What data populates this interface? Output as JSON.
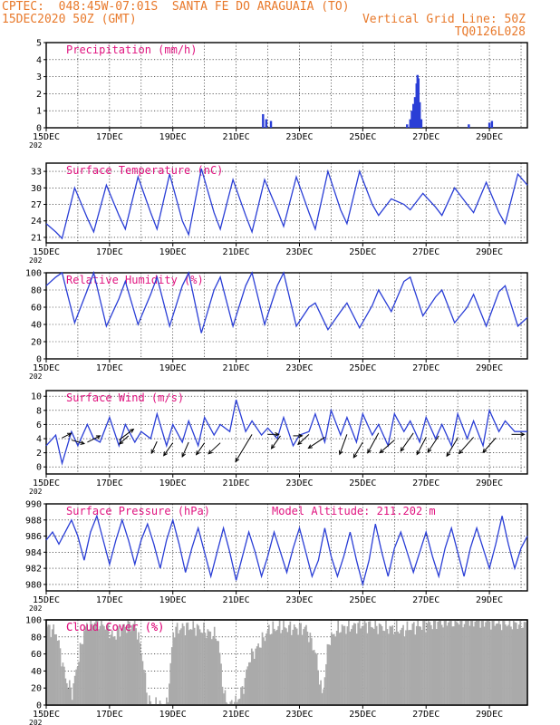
{
  "header": {
    "source": "CPTEC:",
    "coords": "048:45W-07:01S",
    "location": "SANTA FE DO ARAGUAIA (TO)",
    "date": "15DEC2020 50Z (GMT)",
    "grid_note": "Vertical Grid Line: 50Z",
    "model_code": "TQ0126L028"
  },
  "x_axis": {
    "ticks": [
      "15DEC",
      "17DEC",
      "19DEC",
      "21DEC",
      "23DEC",
      "25DEC",
      "27DEC",
      "29DEC"
    ],
    "year_stub": "202"
  },
  "chart_data": [
    {
      "type": "bar",
      "title": "Precipitation (mm/h)",
      "ylim": [
        0,
        5
      ],
      "yticks": [
        "0",
        "1",
        "2",
        "3",
        "4",
        "5"
      ],
      "x_unit": "days since 15DEC",
      "points": [
        [
          6.85,
          0.8
        ],
        [
          6.95,
          0.5
        ],
        [
          7.1,
          0.4
        ],
        [
          11.4,
          0.2
        ],
        [
          11.5,
          0.5
        ],
        [
          11.55,
          1.0
        ],
        [
          11.6,
          1.4
        ],
        [
          11.65,
          1.8
        ],
        [
          11.7,
          2.6
        ],
        [
          11.73,
          3.1
        ],
        [
          11.76,
          2.9
        ],
        [
          11.8,
          1.5
        ],
        [
          11.85,
          0.5
        ],
        [
          13.35,
          0.2
        ],
        [
          14.0,
          0.3
        ],
        [
          14.08,
          0.4
        ]
      ]
    },
    {
      "type": "line",
      "title": "Surface Temperature (nC)",
      "ylim": [
        20,
        34.5
      ],
      "yticks": [
        "21",
        "24",
        "27",
        "30",
        "33"
      ],
      "x": [
        0.0,
        0.3,
        0.5,
        0.9,
        1.3,
        1.5,
        1.9,
        2.3,
        2.5,
        2.9,
        3.3,
        3.5,
        3.9,
        4.3,
        4.5,
        4.9,
        5.3,
        5.5,
        5.9,
        6.3,
        6.5,
        6.9,
        7.3,
        7.5,
        7.9,
        8.3,
        8.5,
        8.9,
        9.3,
        9.5,
        9.9,
        10.3,
        10.5,
        10.9,
        11.3,
        11.5,
        11.9,
        12.3,
        12.5,
        12.9,
        13.3,
        13.5,
        13.9,
        14.3,
        14.5,
        14.9,
        15.2
      ],
      "values": [
        23.5,
        22.0,
        20.8,
        30.0,
        24.5,
        22.0,
        30.5,
        25.0,
        22.5,
        32.0,
        25.5,
        22.5,
        32.5,
        24.0,
        21.5,
        33.5,
        25.5,
        22.5,
        31.5,
        25.0,
        22.0,
        31.5,
        26.0,
        23.0,
        32.0,
        25.5,
        22.5,
        33.0,
        26.0,
        23.5,
        33.0,
        27.0,
        25.0,
        28.0,
        27.0,
        26.0,
        29.0,
        26.5,
        25.0,
        30.0,
        27.0,
        25.5,
        31.0,
        25.5,
        23.5,
        32.5,
        30.5
      ]
    },
    {
      "type": "line",
      "title": "Relative Humidity (%)",
      "ylim": [
        0,
        100
      ],
      "yticks": [
        "0",
        "20",
        "40",
        "60",
        "80",
        "100"
      ],
      "x": [
        0.0,
        0.3,
        0.5,
        0.9,
        1.3,
        1.5,
        1.9,
        2.3,
        2.5,
        2.9,
        3.3,
        3.5,
        3.9,
        4.3,
        4.5,
        4.9,
        5.3,
        5.5,
        5.9,
        6.3,
        6.5,
        6.9,
        7.3,
        7.5,
        7.9,
        8.3,
        8.5,
        8.9,
        9.3,
        9.5,
        9.9,
        10.3,
        10.5,
        10.9,
        11.3,
        11.5,
        11.9,
        12.3,
        12.5,
        12.9,
        13.3,
        13.5,
        13.9,
        14.3,
        14.5,
        14.9,
        15.2
      ],
      "values": [
        85.0,
        95.0,
        100.0,
        42.0,
        80.0,
        100.0,
        38.0,
        70.0,
        90.0,
        40.0,
        75.0,
        95.0,
        38.0,
        85.0,
        100.0,
        30.0,
        80.0,
        95.0,
        38.0,
        85.0,
        100.0,
        40.0,
        85.0,
        100.0,
        38.0,
        60.0,
        65.0,
        34.0,
        55.0,
        65.0,
        36.0,
        62.0,
        80.0,
        55.0,
        90.0,
        95.0,
        50.0,
        72.0,
        80.0,
        42.0,
        60.0,
        75.0,
        38.0,
        78.0,
        85.0,
        38.0,
        48.0
      ]
    },
    {
      "type": "line",
      "title": "Surface Wind (m/s)",
      "ylim": [
        -1,
        10.8
      ],
      "yticks": [
        "0",
        "2",
        "4",
        "6",
        "8",
        "10"
      ],
      "x": [
        0.0,
        0.3,
        0.5,
        0.6,
        0.8,
        1.0,
        1.3,
        1.5,
        1.7,
        2.0,
        2.3,
        2.5,
        2.8,
        3.0,
        3.3,
        3.5,
        3.8,
        4.0,
        4.3,
        4.5,
        4.8,
        5.0,
        5.3,
        5.5,
        5.8,
        6.0,
        6.3,
        6.5,
        6.8,
        7.0,
        7.3,
        7.5,
        7.8,
        8.0,
        8.3,
        8.5,
        8.8,
        9.0,
        9.3,
        9.5,
        9.8,
        10.0,
        10.3,
        10.5,
        10.8,
        11.0,
        11.3,
        11.5,
        11.8,
        12.0,
        12.3,
        12.5,
        12.8,
        13.0,
        13.3,
        13.5,
        13.8,
        14.0,
        14.3,
        14.5,
        14.8,
        15.2
      ],
      "values": [
        3.0,
        4.5,
        0.5,
        2.0,
        5.0,
        3.0,
        6.0,
        4.0,
        3.5,
        7.0,
        3.0,
        6.0,
        3.5,
        5.0,
        4.0,
        7.5,
        3.0,
        6.0,
        3.5,
        6.5,
        3.0,
        7.0,
        4.5,
        6.0,
        5.0,
        9.5,
        5.0,
        6.5,
        4.5,
        5.5,
        4.0,
        7.0,
        3.0,
        4.5,
        5.0,
        7.5,
        3.5,
        8.0,
        4.5,
        7.0,
        3.5,
        7.5,
        4.5,
        6.0,
        3.0,
        7.5,
        5.0,
        6.5,
        3.5,
        7.0,
        4.0,
        6.0,
        3.0,
        7.5,
        4.0,
        6.5,
        3.0,
        8.0,
        5.0,
        6.5,
        5.0,
        5.0
      ],
      "arrows": [
        {
          "x": 0.5,
          "v": 4.1,
          "dx": 10,
          "dy": -5
        },
        {
          "x": 0.8,
          "v": 3.8,
          "dx": 14,
          "dy": 4
        },
        {
          "x": 1.3,
          "v": 3.5,
          "dx": 14,
          "dy": -7
        },
        {
          "x": 2.3,
          "v": 3.8,
          "dx": 16,
          "dy": -12
        },
        {
          "x": 2.6,
          "v": 4.4,
          "dx": -10,
          "dy": 9
        },
        {
          "x": 3.5,
          "v": 3.6,
          "dx": -6,
          "dy": 13
        },
        {
          "x": 4.0,
          "v": 3.4,
          "dx": -10,
          "dy": 14
        },
        {
          "x": 4.5,
          "v": 3.5,
          "dx": -7,
          "dy": 16
        },
        {
          "x": 5.0,
          "v": 3.4,
          "dx": -9,
          "dy": 13
        },
        {
          "x": 5.5,
          "v": 3.4,
          "dx": -13,
          "dy": 12
        },
        {
          "x": 6.5,
          "v": 4.6,
          "dx": -18,
          "dy": 30
        },
        {
          "x": 7.0,
          "v": 4.6,
          "dx": 12,
          "dy": 0
        },
        {
          "x": 7.4,
          "v": 4.4,
          "dx": -10,
          "dy": 14
        },
        {
          "x": 7.8,
          "v": 4.4,
          "dx": 10,
          "dy": 0
        },
        {
          "x": 8.3,
          "v": 4.6,
          "dx": -12,
          "dy": 11
        },
        {
          "x": 8.8,
          "v": 4.2,
          "dx": -18,
          "dy": 12
        },
        {
          "x": 9.5,
          "v": 4.6,
          "dx": -8,
          "dy": 22
        },
        {
          "x": 10.0,
          "v": 3.5,
          "dx": -10,
          "dy": 17
        },
        {
          "x": 10.5,
          "v": 4.8,
          "dx": -12,
          "dy": 22
        },
        {
          "x": 11.0,
          "v": 3.8,
          "dx": -16,
          "dy": 14
        },
        {
          "x": 11.6,
          "v": 4.8,
          "dx": -14,
          "dy": 20
        },
        {
          "x": 12.0,
          "v": 4.2,
          "dx": -10,
          "dy": 19
        },
        {
          "x": 12.4,
          "v": 4.4,
          "dx": -12,
          "dy": 18
        },
        {
          "x": 13.0,
          "v": 4.1,
          "dx": -12,
          "dy": 20
        },
        {
          "x": 13.5,
          "v": 4.2,
          "dx": -16,
          "dy": 18
        },
        {
          "x": 14.2,
          "v": 4.1,
          "dx": -14,
          "dy": 16
        },
        {
          "x": 14.7,
          "v": 4.6,
          "dx": 14,
          "dy": 0
        }
      ]
    },
    {
      "type": "line",
      "title": "Surface Pressure (hPa)",
      "subtitle": "Model Altitude: 211.202 m",
      "ylim": [
        979.2,
        990
      ],
      "yticks": [
        "980",
        "982",
        "984",
        "986",
        "988",
        "990"
      ],
      "x": [
        0.0,
        0.2,
        0.4,
        0.6,
        0.8,
        1.0,
        1.2,
        1.4,
        1.6,
        1.8,
        2.0,
        2.2,
        2.4,
        2.6,
        2.8,
        3.0,
        3.2,
        3.4,
        3.6,
        3.8,
        4.0,
        4.2,
        4.4,
        4.6,
        4.8,
        5.0,
        5.2,
        5.4,
        5.6,
        5.8,
        6.0,
        6.2,
        6.4,
        6.6,
        6.8,
        7.0,
        7.2,
        7.4,
        7.6,
        7.8,
        8.0,
        8.2,
        8.4,
        8.6,
        8.8,
        9.0,
        9.2,
        9.4,
        9.6,
        9.8,
        10.0,
        10.2,
        10.4,
        10.6,
        10.8,
        11.0,
        11.2,
        11.4,
        11.6,
        11.8,
        12.0,
        12.2,
        12.4,
        12.6,
        12.8,
        13.0,
        13.2,
        13.4,
        13.6,
        13.8,
        14.0,
        14.2,
        14.4,
        14.6,
        14.8,
        15.0,
        15.2
      ],
      "values": [
        985.5,
        986.5,
        985.0,
        986.5,
        988.0,
        986.0,
        983.0,
        986.5,
        988.5,
        985.5,
        982.5,
        985.5,
        988.0,
        985.5,
        982.5,
        985.5,
        987.5,
        985.0,
        982.0,
        985.5,
        988.0,
        985.0,
        981.5,
        984.5,
        987.0,
        984.0,
        981.0,
        984.0,
        987.0,
        984.0,
        980.5,
        983.5,
        986.5,
        984.0,
        981.0,
        983.5,
        986.5,
        984.0,
        981.5,
        984.5,
        987.0,
        984.0,
        981.0,
        983.0,
        987.0,
        983.5,
        981.0,
        983.5,
        986.5,
        983.0,
        980.0,
        983.0,
        987.5,
        984.0,
        981.0,
        984.5,
        986.5,
        984.0,
        981.5,
        984.0,
        986.5,
        983.5,
        981.0,
        984.5,
        987.0,
        984.0,
        981.0,
        984.5,
        987.0,
        984.5,
        982.0,
        985.0,
        988.5,
        985.0,
        982.0,
        984.5,
        986.0
      ]
    },
    {
      "type": "bar",
      "title": "Cloud Cover (%)",
      "ylim": [
        0,
        100
      ],
      "yticks": [
        "0",
        "20",
        "40",
        "60",
        "80",
        "100"
      ],
      "profile": [
        [
          0.0,
          92
        ],
        [
          0.3,
          85
        ],
        [
          0.6,
          30
        ],
        [
          0.8,
          15
        ],
        [
          1.0,
          55
        ],
        [
          1.2,
          90
        ],
        [
          1.5,
          98
        ],
        [
          1.8,
          95
        ],
        [
          2.1,
          80
        ],
        [
          2.4,
          92
        ],
        [
          2.8,
          95
        ],
        [
          3.0,
          60
        ],
        [
          3.2,
          5
        ],
        [
          3.4,
          0
        ],
        [
          3.6,
          0
        ],
        [
          3.8,
          0
        ],
        [
          4.0,
          88
        ],
        [
          4.4,
          92
        ],
        [
          4.8,
          90
        ],
        [
          5.1,
          85
        ],
        [
          5.4,
          80
        ],
        [
          5.6,
          10
        ],
        [
          5.8,
          0
        ],
        [
          6.0,
          5
        ],
        [
          6.2,
          20
        ],
        [
          6.4,
          55
        ],
        [
          6.7,
          70
        ],
        [
          7.0,
          88
        ],
        [
          7.4,
          92
        ],
        [
          7.8,
          90
        ],
        [
          8.2,
          90
        ],
        [
          8.5,
          60
        ],
        [
          8.7,
          10
        ],
        [
          8.9,
          75
        ],
        [
          9.2,
          90
        ],
        [
          9.6,
          92
        ],
        [
          10.0,
          95
        ],
        [
          10.5,
          92
        ],
        [
          10.9,
          90
        ],
        [
          11.2,
          88
        ],
        [
          11.6,
          92
        ],
        [
          12.0,
          95
        ],
        [
          12.5,
          98
        ],
        [
          13.0,
          98
        ],
        [
          13.5,
          100
        ],
        [
          14.0,
          98
        ],
        [
          14.5,
          96
        ],
        [
          15.2,
          95
        ]
      ]
    }
  ]
}
